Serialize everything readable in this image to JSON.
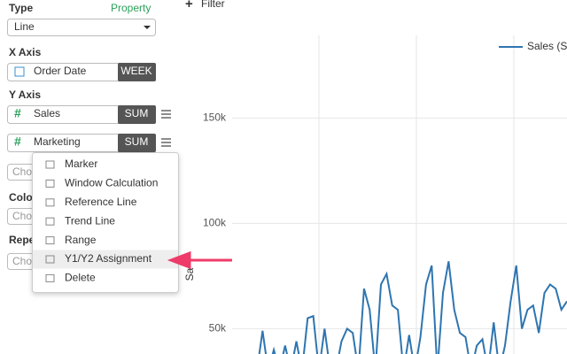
{
  "filter_button": "Filter",
  "panel": {
    "type": {
      "label": "Type",
      "link": "Property",
      "value": "Line"
    },
    "x_axis": {
      "label": "X Axis",
      "field": "Order Date",
      "aggregation": "WEEK"
    },
    "y_axis": {
      "label": "Y Axis",
      "fields": [
        {
          "name": "Sales",
          "aggregation": "SUM"
        },
        {
          "name": "Marketing",
          "aggregation": "SUM"
        }
      ]
    },
    "choose_select": "Cho",
    "color": {
      "label": "Colo",
      "select": "Cho"
    },
    "repeat": {
      "label": "Repe",
      "select": "Cho"
    }
  },
  "menu": {
    "items": [
      "Marker",
      "Window Calculation",
      "Reference Line",
      "Trend Line",
      "Range",
      "Y1/Y2 Assignment",
      "Delete"
    ],
    "highlighted": 5
  },
  "chart": {
    "type": "line",
    "y_label": "Sa",
    "ylim": [
      38000,
      206000
    ],
    "yticks": [
      {
        "value": 50000,
        "label": "50k"
      },
      {
        "value": 100000,
        "label": "100k"
      },
      {
        "value": 150000,
        "label": "150k"
      }
    ],
    "grid": true,
    "series": [
      {
        "name": "Sales (Su",
        "color": "#2e75b0",
        "values": [
          30000,
          49000,
          30000,
          40000,
          30000,
          42000,
          30000,
          44000,
          30000,
          55000,
          56000,
          30000,
          50000,
          30000,
          30000,
          44000,
          50000,
          48000,
          30000,
          69000,
          59000,
          30000,
          71000,
          76000,
          61000,
          59000,
          30000,
          47000,
          30000,
          46000,
          71000,
          80000,
          30000,
          67000,
          82000,
          59000,
          48000,
          46000,
          30000,
          42000,
          45000,
          30000,
          53000,
          30000,
          42000,
          63000,
          80000,
          50000,
          59000,
          61000,
          48000,
          67000,
          71000,
          69000,
          59000,
          63000
        ]
      }
    ]
  }
}
